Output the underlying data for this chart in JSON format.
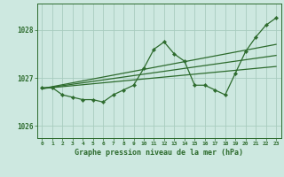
{
  "title": "Graphe pression niveau de la mer (hPa)",
  "xlabel_hours": [
    0,
    1,
    2,
    3,
    4,
    5,
    6,
    7,
    8,
    9,
    10,
    11,
    12,
    13,
    14,
    15,
    16,
    17,
    18,
    19,
    20,
    21,
    22,
    23
  ],
  "ylim": [
    1025.75,
    1028.55
  ],
  "yticks": [
    1026,
    1027,
    1028
  ],
  "bg_color": "#cde8e0",
  "grid_color": "#a8ccbf",
  "line_color": "#2d6b2d",
  "series": {
    "main": [
      1026.8,
      1026.8,
      1026.65,
      1026.6,
      1026.55,
      1026.55,
      1026.5,
      1026.65,
      1026.75,
      1026.85,
      1027.2,
      1027.6,
      1027.75,
      1027.5,
      1027.35,
      1026.85,
      1026.85,
      1026.75,
      1026.65,
      1027.1,
      1027.55,
      1027.85,
      1028.1,
      1028.25
    ],
    "trend1": [
      1026.78,
      1026.8,
      1026.82,
      1026.84,
      1026.86,
      1026.88,
      1026.9,
      1026.92,
      1026.94,
      1026.96,
      1026.98,
      1027.0,
      1027.02,
      1027.04,
      1027.06,
      1027.08,
      1027.1,
      1027.12,
      1027.14,
      1027.16,
      1027.18,
      1027.2,
      1027.22,
      1027.24
    ],
    "trend2": [
      1026.78,
      1026.81,
      1026.84,
      1026.87,
      1026.9,
      1026.93,
      1026.96,
      1026.99,
      1027.02,
      1027.05,
      1027.08,
      1027.11,
      1027.14,
      1027.17,
      1027.2,
      1027.23,
      1027.26,
      1027.29,
      1027.32,
      1027.35,
      1027.38,
      1027.41,
      1027.44,
      1027.47
    ],
    "trend3": [
      1026.78,
      1026.82,
      1026.86,
      1026.9,
      1026.94,
      1026.98,
      1027.02,
      1027.06,
      1027.1,
      1027.14,
      1027.18,
      1027.22,
      1027.26,
      1027.3,
      1027.34,
      1027.38,
      1027.42,
      1027.46,
      1027.5,
      1027.54,
      1027.58,
      1027.62,
      1027.66,
      1027.7
    ]
  },
  "figsize": [
    3.2,
    2.0
  ],
  "dpi": 100
}
